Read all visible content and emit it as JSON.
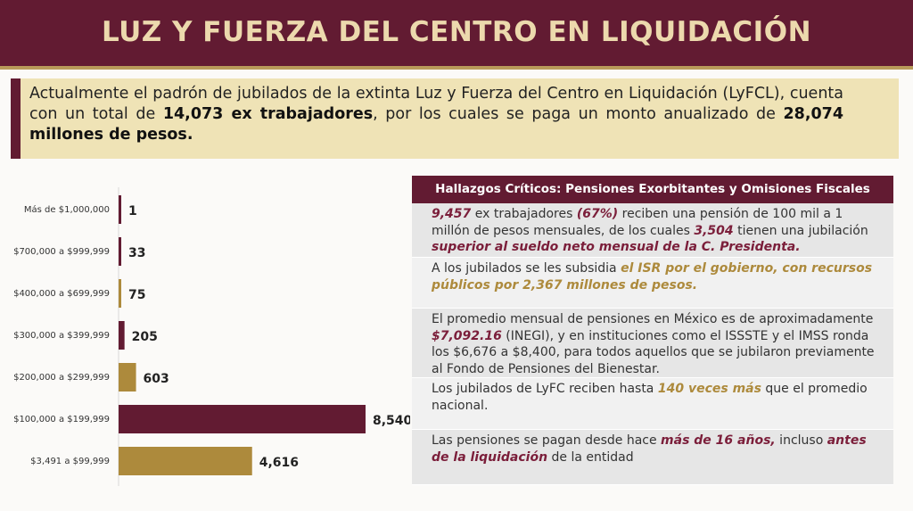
{
  "title": "LUZ Y FUERZA DEL CENTRO EN LIQUIDACIÓN",
  "intro": [
    {
      "text": "Actualmente el padrón de jubilados de la extinta Luz y Fuerza del Centro en Liquidación (LyFCL), cuenta con un total de ",
      "style": "plain"
    },
    {
      "text": "14,073 ex trabajadores",
      "style": "bold"
    },
    {
      "text": ", por los cuales se paga un monto anualizado de ",
      "style": "plain"
    },
    {
      "text": "28,074 millones de pesos.",
      "style": "bold"
    }
  ],
  "chart_data": {
    "type": "bar",
    "orientation": "horizontal",
    "categories": [
      "Más de $1,000,000",
      "$700,000 a $999,999",
      "$400,000 a $699,999",
      "$300,000 a $399,999",
      "$200,000 a $299,999",
      "$100,000 a $199,999",
      "$3,491 a $99,999"
    ],
    "values": [
      1,
      33,
      75,
      205,
      603,
      8540,
      4616
    ],
    "value_labels": [
      "1",
      "33",
      "75",
      "205",
      "603",
      "8,540",
      "4,616"
    ],
    "colors": [
      "#621b32",
      "#621b32",
      "#ad8a3c",
      "#621b32",
      "#ad8a3c",
      "#621b32",
      "#ad8a3c"
    ]
  },
  "findings": {
    "title": "Hallazgos Críticos: Pensiones Exorbitantes y Omisiones Fiscales",
    "items": [
      [
        {
          "text": "9,457",
          "style": "red"
        },
        {
          "text": " ex trabajadores ",
          "style": "plain"
        },
        {
          "text": "(67%)",
          "style": "red"
        },
        {
          "text": " reciben una pensión de 100 mil a 1 millón de pesos mensuales, de los cuales ",
          "style": "plain"
        },
        {
          "text": "3,504",
          "style": "red"
        },
        {
          "text": " tienen una jubilación ",
          "style": "plain"
        },
        {
          "text": "superior al sueldo neto mensual de la C. Presidenta.",
          "style": "red"
        }
      ],
      [
        {
          "text": "A los jubilados se les subsidia ",
          "style": "plain"
        },
        {
          "text": "el ISR por el gobierno, con recursos públicos por 2,367 millones de pesos.",
          "style": "gold"
        }
      ],
      [
        {
          "text": "El promedio mensual de pensiones en México es de aproximadamente ",
          "style": "plain"
        },
        {
          "text": "$7,092.16",
          "style": "red"
        },
        {
          "text": " (INEGI), y en instituciones como  el ISSSTE y el IMSS ronda los $6,676 a $8,400, para todos aquellos que se jubilaron previamente al Fondo de Pensiones del Bienestar.",
          "style": "plain"
        }
      ],
      [
        {
          "text": "Los jubilados de LyFC reciben hasta ",
          "style": "plain"
        },
        {
          "text": "140 veces más",
          "style": "gold"
        },
        {
          "text": " que el promedio nacional.",
          "style": "plain"
        }
      ],
      [
        {
          "text": "Las pensiones se pagan desde hace ",
          "style": "plain"
        },
        {
          "text": "más de 16 años,",
          "style": "red"
        },
        {
          "text": " incluso ",
          "style": "plain"
        },
        {
          "text": "antes de la liquidación",
          "style": "red"
        },
        {
          "text": " de la entidad",
          "style": "plain"
        }
      ]
    ]
  }
}
